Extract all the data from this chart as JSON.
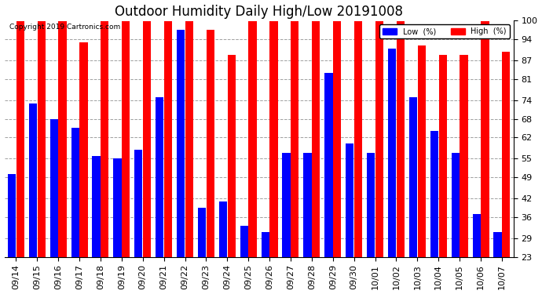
{
  "title": "Outdoor Humidity Daily High/Low 20191008",
  "copyright": "Copyright 2019 Cartronics.com",
  "background_color": "#ffffff",
  "plot_bg_color": "#ffffff",
  "dates": [
    "09/14",
    "09/15",
    "09/16",
    "09/17",
    "09/18",
    "09/19",
    "09/20",
    "09/21",
    "09/22",
    "09/23",
    "09/24",
    "09/25",
    "09/26",
    "09/27",
    "09/28",
    "09/29",
    "09/30",
    "10/01",
    "10/02",
    "10/03",
    "10/04",
    "10/05",
    "10/06",
    "10/07"
  ],
  "high": [
    100,
    100,
    100,
    93,
    100,
    100,
    100,
    100,
    100,
    97,
    89,
    100,
    100,
    100,
    100,
    100,
    100,
    100,
    100,
    92,
    89,
    89,
    100,
    90
  ],
  "low": [
    50,
    73,
    68,
    65,
    56,
    55,
    58,
    75,
    97,
    39,
    41,
    33,
    31,
    57,
    57,
    83,
    60,
    57,
    91,
    75,
    64,
    57,
    37,
    31
  ],
  "low_color": "#0000ff",
  "high_color": "#ff0000",
  "ylim_min": 23,
  "ylim_max": 100,
  "yticks": [
    23,
    29,
    36,
    42,
    49,
    55,
    62,
    68,
    74,
    81,
    87,
    94,
    100
  ],
  "grid_color": "#888888",
  "title_fontsize": 12,
  "tick_fontsize": 8,
  "bar_width": 0.38
}
